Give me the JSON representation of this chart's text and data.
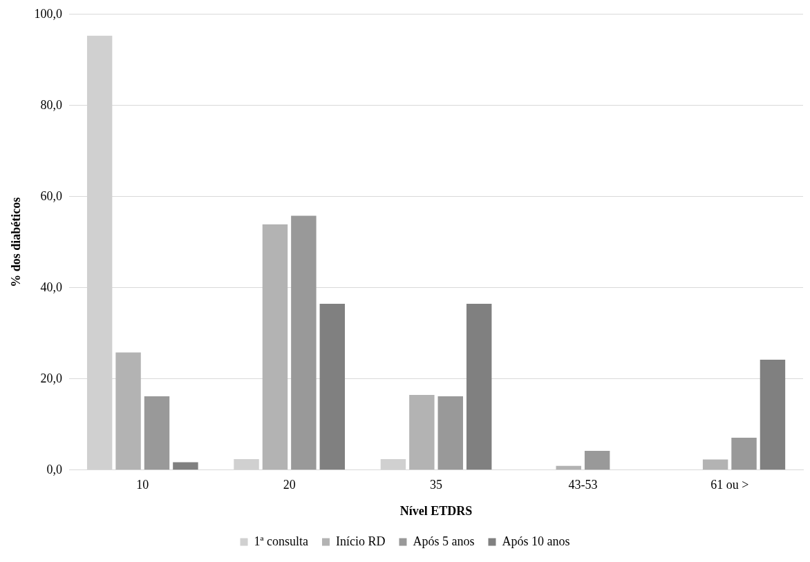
{
  "chart_data": {
    "type": "bar",
    "xlabel": "Nível ETDRS",
    "ylabel": "% dos diabéticos",
    "categories": [
      "10",
      "20",
      "35",
      "43-53",
      "61 ou >"
    ],
    "series": [
      {
        "name": "1ª consulta",
        "color": "#d0d0d0",
        "values": [
          95.3,
          2.4,
          2.4,
          0,
          0
        ]
      },
      {
        "name": "Início RD",
        "color": "#b3b3b3",
        "values": [
          25.8,
          53.9,
          16.5,
          0.9,
          2.3
        ]
      },
      {
        "name": "Após 5 anos",
        "color": "#999999",
        "values": [
          16.2,
          55.8,
          16.2,
          4.2,
          7.1
        ]
      },
      {
        "name": "Após 10 anos",
        "color": "#808080",
        "values": [
          1.7,
          36.5,
          36.5,
          0,
          24.2
        ]
      }
    ],
    "ylim": [
      0,
      100
    ],
    "yticks": [
      {
        "value": 0,
        "label": "0,0"
      },
      {
        "value": 20,
        "label": "20,0"
      },
      {
        "value": 40,
        "label": "40,0"
      },
      {
        "value": 60,
        "label": "60,0"
      },
      {
        "value": 80,
        "label": "80,0"
      },
      {
        "value": 100,
        "label": "100,0"
      }
    ],
    "grid": "y",
    "legend": "bottom"
  }
}
